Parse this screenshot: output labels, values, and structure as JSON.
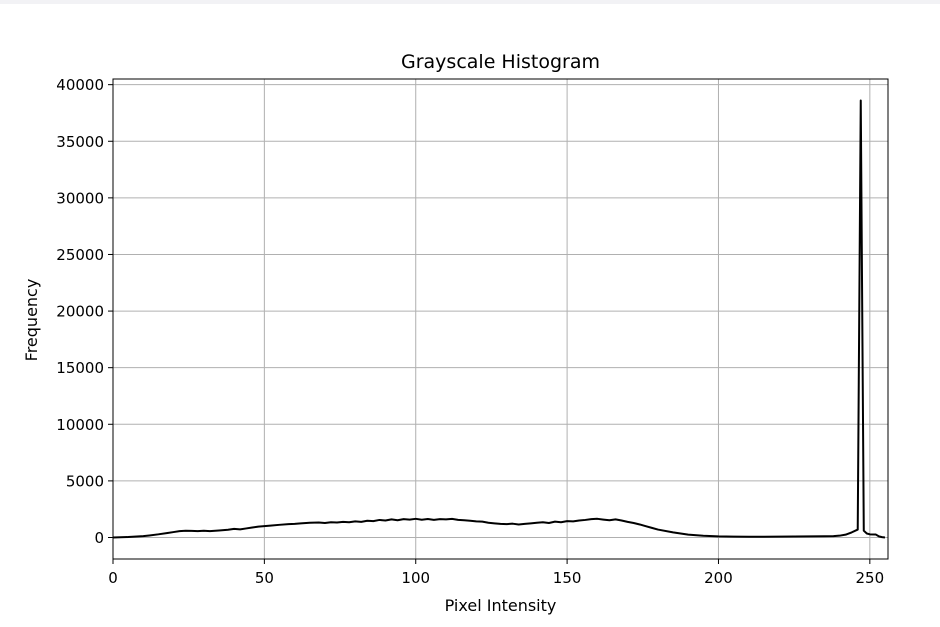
{
  "chart_data": {
    "type": "line",
    "title": "Grayscale Histogram",
    "xlabel": "Pixel Intensity",
    "ylabel": "Frequency",
    "xlim": [
      0,
      256
    ],
    "ylim": [
      -1900,
      40500
    ],
    "xticks": [
      0,
      50,
      100,
      150,
      200,
      250
    ],
    "yticks": [
      0,
      5000,
      10000,
      15000,
      20000,
      25000,
      30000,
      35000,
      40000
    ],
    "grid": true,
    "line_color": "#000000",
    "grid_color": "#b0b0b0",
    "series": [
      {
        "x": [
          0,
          5,
          10,
          12,
          15,
          18,
          20,
          22,
          24,
          26,
          28,
          30,
          32,
          35,
          38,
          40,
          42,
          44,
          46,
          48,
          50,
          52,
          55,
          58,
          60,
          62,
          65,
          68,
          70,
          72,
          74,
          76,
          78,
          80,
          82,
          84,
          86,
          88,
          90,
          92,
          94,
          96,
          98,
          100,
          102,
          104,
          106,
          108,
          110,
          112,
          114,
          116,
          118,
          120,
          122,
          124,
          126,
          128,
          130,
          132,
          134,
          136,
          138,
          140,
          142,
          144,
          146,
          148,
          150,
          152,
          154,
          156,
          158,
          160,
          162,
          164,
          166,
          168,
          170,
          172,
          174,
          176,
          178,
          180,
          185,
          190,
          195,
          200,
          205,
          210,
          215,
          220,
          225,
          230,
          235,
          238,
          240,
          242,
          244,
          246,
          247,
          248,
          249,
          250,
          252,
          253,
          254,
          255
        ],
        "y": [
          0,
          40,
          120,
          180,
          280,
          400,
          480,
          560,
          600,
          580,
          560,
          600,
          560,
          620,
          680,
          760,
          720,
          800,
          880,
          960,
          1000,
          1050,
          1120,
          1180,
          1200,
          1250,
          1300,
          1320,
          1280,
          1350,
          1320,
          1380,
          1350,
          1420,
          1380,
          1480,
          1450,
          1550,
          1500,
          1600,
          1520,
          1620,
          1580,
          1650,
          1570,
          1630,
          1560,
          1620,
          1600,
          1640,
          1560,
          1520,
          1480,
          1420,
          1400,
          1300,
          1250,
          1200,
          1180,
          1220,
          1150,
          1200,
          1250,
          1300,
          1350,
          1280,
          1400,
          1350,
          1450,
          1420,
          1500,
          1550,
          1620,
          1650,
          1580,
          1520,
          1600,
          1500,
          1380,
          1280,
          1150,
          1000,
          850,
          700,
          450,
          250,
          150,
          100,
          80,
          60,
          70,
          80,
          90,
          100,
          110,
          120,
          160,
          250,
          450,
          700,
          38600,
          600,
          350,
          280,
          260,
          100,
          30,
          0
        ]
      }
    ]
  }
}
